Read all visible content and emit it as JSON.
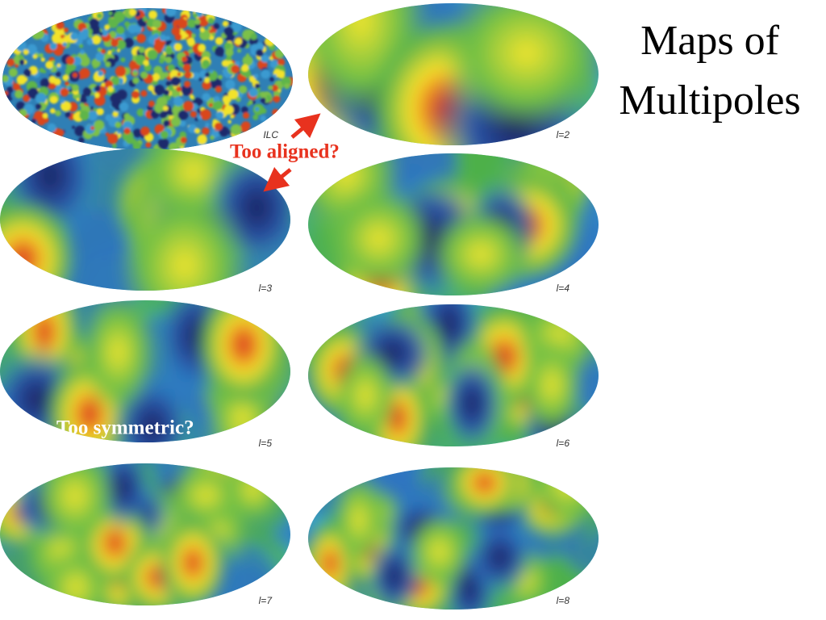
{
  "title": "Maps of Multipoles",
  "maps": [
    {
      "label": "ILC"
    },
    {
      "label": "l=2"
    },
    {
      "label": "l=3"
    },
    {
      "label": "l=4"
    },
    {
      "label": "l=5"
    },
    {
      "label": "l=6"
    },
    {
      "label": "l=7"
    },
    {
      "label": "l=8"
    }
  ],
  "annotations": {
    "aligned": "Too aligned?",
    "symmetric": "Too symmetric?"
  }
}
